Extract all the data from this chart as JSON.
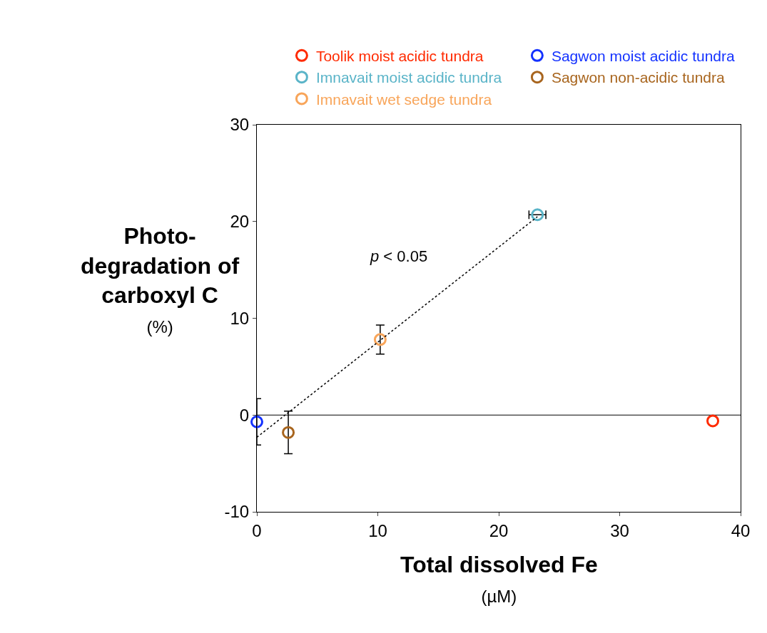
{
  "chart_data": {
    "type": "scatter",
    "xlabel": "Total dissolved Fe\n(µM)",
    "ylabel": "Photo-\ndegradation of\ncarboxyl C\n(%)",
    "annotations": [
      "p < 0.05"
    ],
    "series": [
      {
        "name": "Toolik moist acidic tundra",
        "color": "#ff2a00",
        "x": [
          37.7
        ],
        "values": [
          -0.6
        ]
      },
      {
        "name": "Sagwon moist acidic tundra",
        "color": "#1432ff",
        "x": [
          0
        ],
        "values": [
          -0.7
        ],
        "errors": [
          2.4
        ]
      },
      {
        "name": "Imnavait moist acidic tundra",
        "color": "#5ab4c8",
        "x": [
          23.2
        ],
        "values": [
          20.7
        ],
        "xerrors": [
          0.7
        ]
      },
      {
        "name": "Sagwon non-acidic tundra",
        "color": "#a8651e",
        "x": [
          2.6
        ],
        "values": [
          -1.8
        ],
        "errors": [
          2.2
        ]
      },
      {
        "name": "Imnavait wet sedge tundra",
        "color": "#f8a55a",
        "x": [
          10.2
        ],
        "values": [
          7.8
        ],
        "errors": [
          1.5
        ]
      },
      {
        "type": "line",
        "color": "#000000",
        "line_style": "dotted",
        "marker": "none",
        "x": [
          0,
          23.2
        ],
        "values": [
          -2.3,
          20.5
        ]
      }
    ],
    "marker": "circle",
    "xlim": [
      0,
      40
    ],
    "xticks": [
      0,
      10,
      20,
      30,
      40
    ],
    "ylim": [
      -10,
      30
    ],
    "yticks": [
      -10,
      0,
      10,
      20,
      30
    ],
    "ref_lines": [
      {
        "axis": "y",
        "value": 0,
        "color": "#000000"
      }
    ],
    "grid": false,
    "legend": "top"
  }
}
